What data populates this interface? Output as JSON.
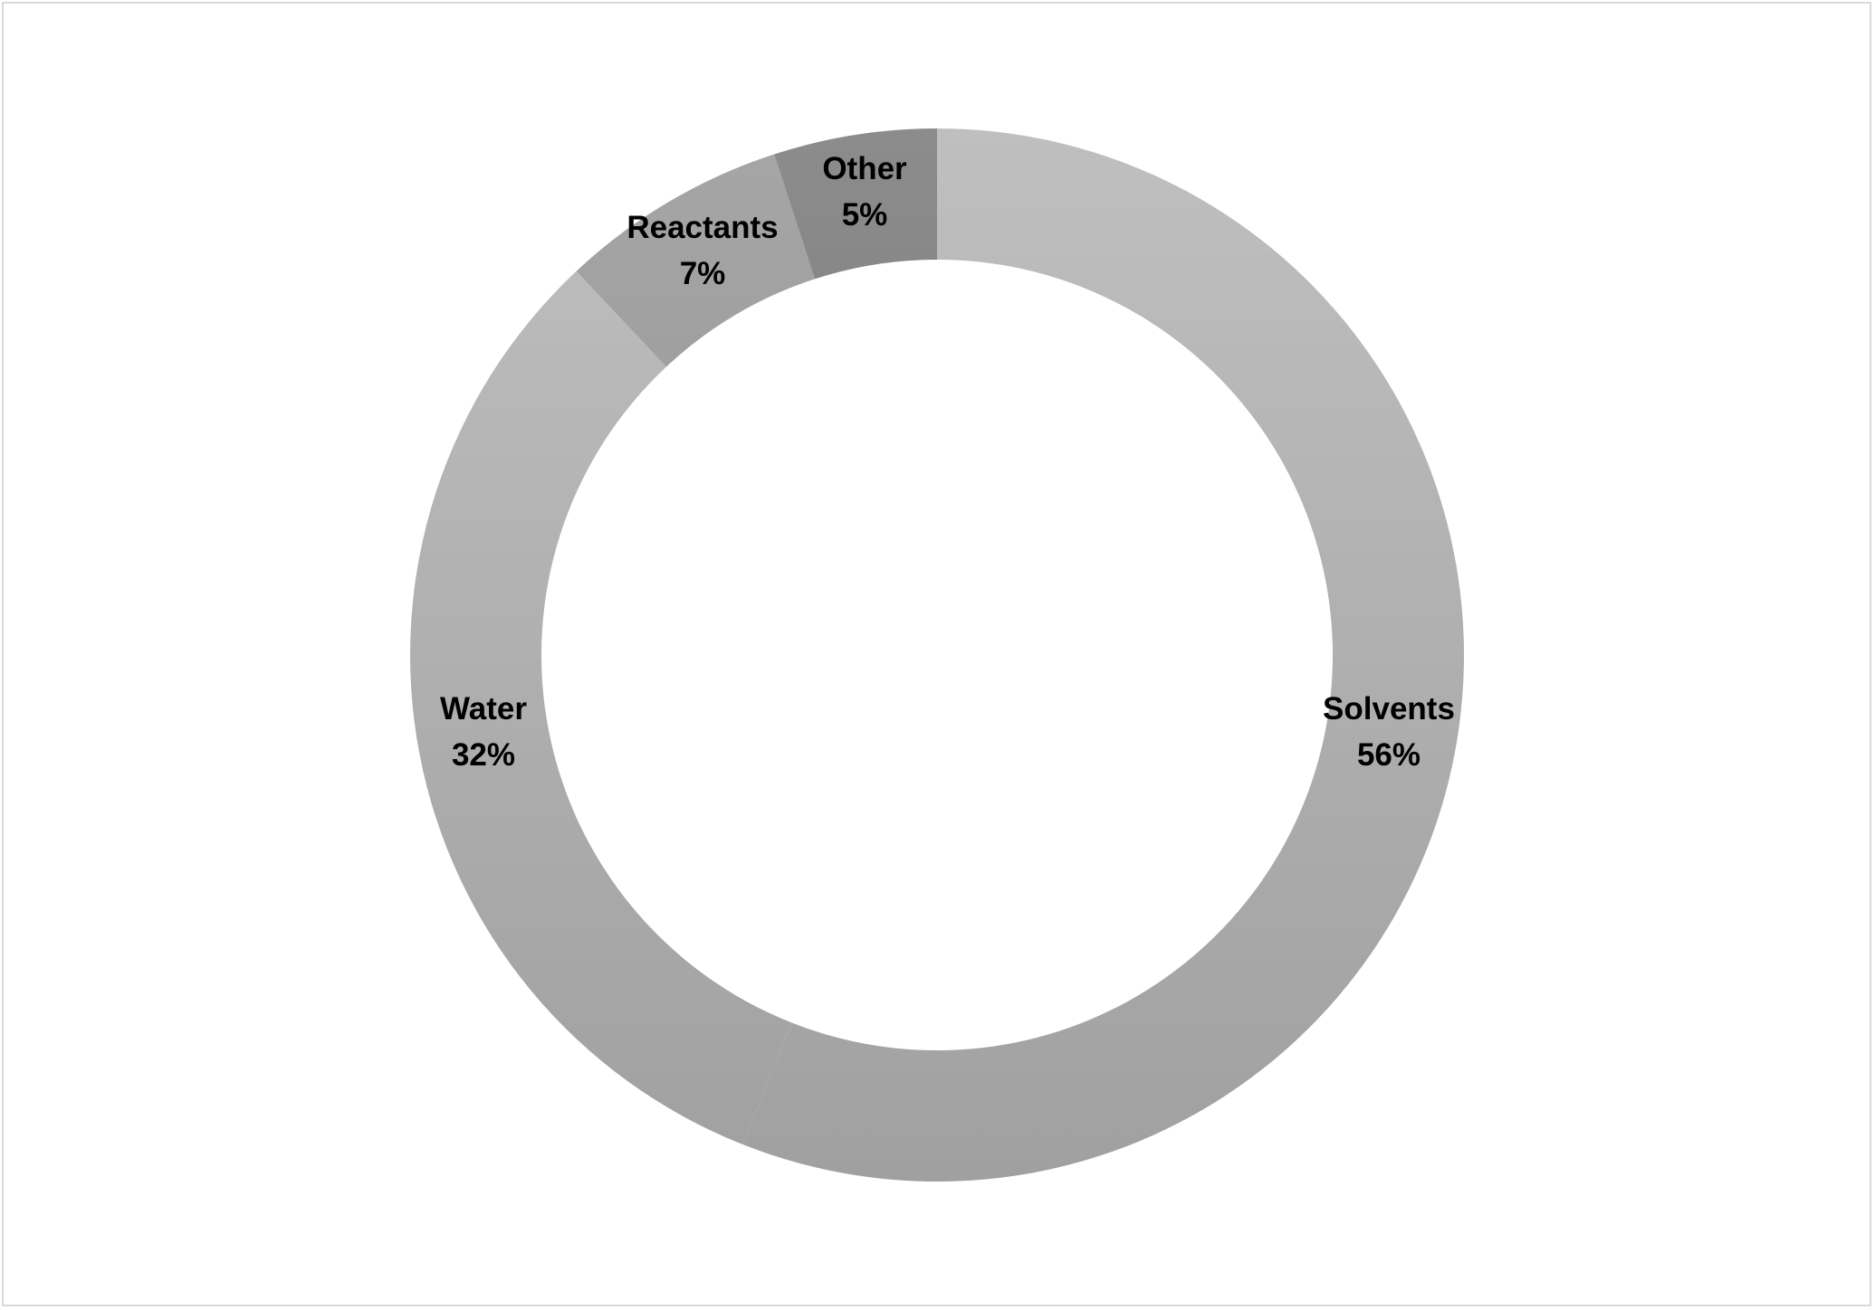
{
  "chart_data": {
    "type": "pie",
    "style": "doughnut",
    "title": "",
    "slices": [
      {
        "label": "Solvents",
        "value": 56,
        "value_label": "56%",
        "color_top": "#bfbfbf",
        "color_bottom": "#a0a0a0"
      },
      {
        "label": "Water",
        "value": 32,
        "value_label": "32%",
        "color_top": "#bfbfbf",
        "color_bottom": "#a0a0a0"
      },
      {
        "label": "Reactants",
        "value": 7,
        "value_label": "7%",
        "color_top": "#a6a6a6",
        "color_bottom": "#8a8a8a"
      },
      {
        "label": "Other",
        "value": 5,
        "value_label": "5%",
        "color_top": "#8c8c8c",
        "color_bottom": "#6e6e6e"
      }
    ],
    "start_angle_deg": 0,
    "direction": "clockwise",
    "legend": "none",
    "data_labels": "category and percentage"
  }
}
